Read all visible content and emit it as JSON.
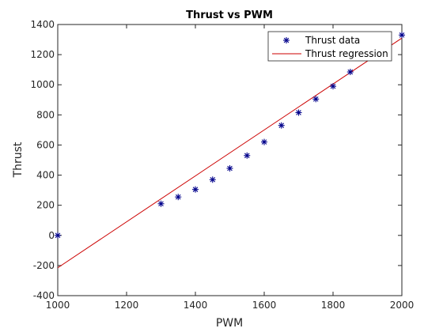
{
  "chart_data": {
    "type": "scatter",
    "title": "Thrust vs PWM",
    "xlabel": "PWM",
    "ylabel": "Thrust",
    "xlim": [
      1000,
      2000
    ],
    "ylim": [
      -400,
      1400
    ],
    "xticks": [
      1000,
      1200,
      1400,
      1600,
      1800,
      2000
    ],
    "yticks": [
      -400,
      -200,
      0,
      200,
      400,
      600,
      800,
      1000,
      1200,
      1400
    ],
    "grid": false,
    "legend_position": "top-right",
    "series": [
      {
        "name": "Thrust data",
        "kind": "scatter",
        "marker": "asterisk",
        "color": "#00008B",
        "x": [
          1000,
          1300,
          1350,
          1400,
          1450,
          1500,
          1550,
          1600,
          1650,
          1700,
          1750,
          1800,
          1850,
          2000
        ],
        "y": [
          0,
          210,
          255,
          305,
          370,
          445,
          530,
          620,
          730,
          815,
          905,
          990,
          1085,
          1330
        ]
      },
      {
        "name": "Thrust regression",
        "kind": "line",
        "color": "#CC0000",
        "x": [
          1000,
          2000
        ],
        "y": [
          -215,
          1310
        ]
      }
    ]
  }
}
